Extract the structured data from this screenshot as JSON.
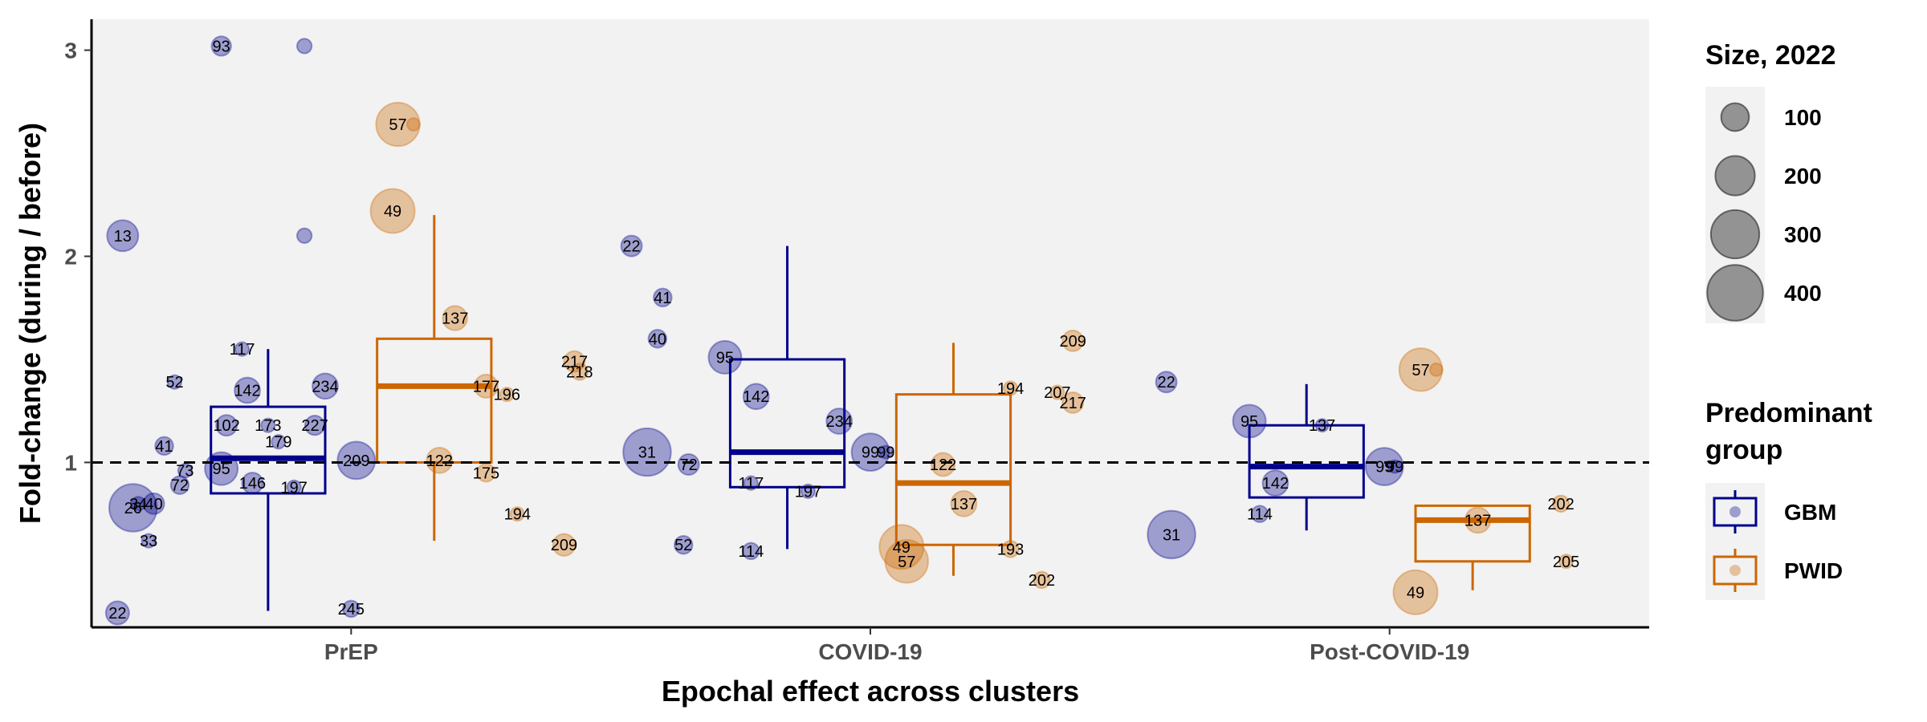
{
  "chart_data": {
    "type": "scatter",
    "title": "",
    "xlabel": "Epochal effect across clusters",
    "ylabel": "Fold-change (during / before)",
    "categories": [
      "PrEP",
      "COVID-19",
      "Post-COVID-19"
    ],
    "yticks": [
      1,
      2,
      3
    ],
    "ylim": [
      0.2,
      3.15
    ],
    "reference_line": 1,
    "grid": false,
    "colors": {
      "GBM": "#00008B",
      "PWID": "#CC6600",
      "panel": "#F2F2F2"
    },
    "size_legend": {
      "title": "Size, 2022",
      "values": [
        100,
        200,
        300,
        400
      ],
      "labels": [
        "100",
        "200",
        "300",
        "400"
      ]
    },
    "color_legend": {
      "title_lines": [
        "Predominant",
        "group"
      ],
      "entries": [
        "GBM",
        "PWID"
      ]
    },
    "boxes": [
      {
        "category": "PrEP",
        "group": "GBM",
        "min": 0.28,
        "q1": 0.85,
        "median": 1.02,
        "q3": 1.27,
        "max": 1.55
      },
      {
        "category": "PrEP",
        "group": "PWID",
        "min": 0.62,
        "q1": 1.0,
        "median": 1.37,
        "q3": 1.6,
        "max": 2.2
      },
      {
        "category": "COVID-19",
        "group": "GBM",
        "min": 0.58,
        "q1": 0.88,
        "median": 1.05,
        "q3": 1.5,
        "max": 2.05
      },
      {
        "category": "COVID-19",
        "group": "PWID",
        "min": 0.45,
        "q1": 0.6,
        "median": 0.9,
        "q3": 1.33,
        "max": 1.58
      },
      {
        "category": "Post-COVID-19",
        "group": "GBM",
        "min": 0.67,
        "q1": 0.83,
        "median": 0.98,
        "q3": 1.18,
        "max": 1.38
      },
      {
        "category": "Post-COVID-19",
        "group": "PWID",
        "min": 0.38,
        "q1": 0.52,
        "median": 0.72,
        "q3": 0.79,
        "max": 0.79
      }
    ],
    "points": [
      {
        "category": "PrEP",
        "group": "GBM",
        "label": "93",
        "y": 3.02,
        "size": 70,
        "dx": -0.25
      },
      {
        "category": "PrEP",
        "group": "GBM",
        "label": "",
        "y": 3.02,
        "size": 40,
        "dx": -0.09
      },
      {
        "category": "PrEP",
        "group": "GBM",
        "label": "13",
        "y": 2.1,
        "size": 180,
        "dx": -0.44
      },
      {
        "category": "PrEP",
        "group": "GBM",
        "label": "",
        "y": 2.1,
        "size": 40,
        "dx": -0.09
      },
      {
        "category": "PrEP",
        "group": "GBM",
        "label": "117",
        "y": 1.55,
        "size": 35,
        "dx": -0.21
      },
      {
        "category": "PrEP",
        "group": "GBM",
        "label": "52",
        "y": 1.39,
        "size": 35,
        "dx": -0.34
      },
      {
        "category": "PrEP",
        "group": "GBM",
        "label": "142",
        "y": 1.35,
        "size": 120,
        "dx": -0.2
      },
      {
        "category": "PrEP",
        "group": "GBM",
        "label": "234",
        "y": 1.37,
        "size": 120,
        "dx": -0.05
      },
      {
        "category": "PrEP",
        "group": "GBM",
        "label": "102",
        "y": 1.18,
        "size": 80,
        "dx": -0.24
      },
      {
        "category": "PrEP",
        "group": "GBM",
        "label": "173",
        "y": 1.18,
        "size": 35,
        "dx": -0.16
      },
      {
        "category": "PrEP",
        "group": "GBM",
        "label": "227",
        "y": 1.18,
        "size": 70,
        "dx": -0.07
      },
      {
        "category": "PrEP",
        "group": "GBM",
        "label": "179",
        "y": 1.1,
        "size": 35,
        "dx": -0.14
      },
      {
        "category": "PrEP",
        "group": "GBM",
        "label": "41",
        "y": 1.08,
        "size": 60,
        "dx": -0.36
      },
      {
        "category": "PrEP",
        "group": "GBM",
        "label": "209",
        "y": 1.01,
        "size": 260,
        "dx": 0.01
      },
      {
        "category": "PrEP",
        "group": "GBM",
        "label": "95",
        "y": 0.97,
        "size": 200,
        "dx": -0.25
      },
      {
        "category": "PrEP",
        "group": "GBM",
        "label": "73",
        "y": 0.96,
        "size": 35,
        "dx": -0.32
      },
      {
        "category": "PrEP",
        "group": "GBM",
        "label": "146",
        "y": 0.9,
        "size": 80,
        "dx": -0.19
      },
      {
        "category": "PrEP",
        "group": "GBM",
        "label": "197",
        "y": 0.88,
        "size": 35,
        "dx": -0.11
      },
      {
        "category": "PrEP",
        "group": "GBM",
        "label": "72",
        "y": 0.89,
        "size": 60,
        "dx": -0.33
      },
      {
        "category": "PrEP",
        "group": "GBM",
        "label": "40",
        "y": 0.8,
        "size": 80,
        "dx": -0.38
      },
      {
        "category": "PrEP",
        "group": "GBM",
        "label": "34",
        "y": 0.8,
        "size": 35,
        "dx": -0.41
      },
      {
        "category": "PrEP",
        "group": "GBM",
        "label": "26",
        "y": 0.78,
        "size": 420,
        "dx": -0.42
      },
      {
        "category": "PrEP",
        "group": "GBM",
        "label": "33",
        "y": 0.62,
        "size": 35,
        "dx": -0.39
      },
      {
        "category": "PrEP",
        "group": "GBM",
        "label": "22",
        "y": 0.27,
        "size": 100,
        "dx": -0.45
      },
      {
        "category": "PrEP",
        "group": "GBM",
        "label": "245",
        "y": 0.29,
        "size": 50,
        "dx": 0.0
      },
      {
        "category": "PrEP",
        "group": "PWID",
        "label": "57",
        "y": 2.64,
        "size": 350,
        "dx": 0.09
      },
      {
        "category": "PrEP",
        "group": "PWID",
        "label": "",
        "y": 2.64,
        "size": 30,
        "dx": 0.12
      },
      {
        "category": "PrEP",
        "group": "PWID",
        "label": "49",
        "y": 2.22,
        "size": 360,
        "dx": 0.08
      },
      {
        "category": "PrEP",
        "group": "PWID",
        "label": "137",
        "y": 1.7,
        "size": 110,
        "dx": 0.2
      },
      {
        "category": "PrEP",
        "group": "PWID",
        "label": "217",
        "y": 1.49,
        "size": 80,
        "dx": 0.43
      },
      {
        "category": "PrEP",
        "group": "PWID",
        "label": "218",
        "y": 1.44,
        "size": 50,
        "dx": 0.44
      },
      {
        "category": "PrEP",
        "group": "PWID",
        "label": "177",
        "y": 1.37,
        "size": 100,
        "dx": 0.26
      },
      {
        "category": "PrEP",
        "group": "PWID",
        "label": "196",
        "y": 1.33,
        "size": 35,
        "dx": 0.3
      },
      {
        "category": "PrEP",
        "group": "PWID",
        "label": "122",
        "y": 1.01,
        "size": 120,
        "dx": 0.17
      },
      {
        "category": "PrEP",
        "group": "PWID",
        "label": "175",
        "y": 0.95,
        "size": 60,
        "dx": 0.26
      },
      {
        "category": "PrEP",
        "group": "PWID",
        "label": "194",
        "y": 0.75,
        "size": 35,
        "dx": 0.32
      },
      {
        "category": "PrEP",
        "group": "PWID",
        "label": "209",
        "y": 0.6,
        "size": 90,
        "dx": 0.41
      },
      {
        "category": "COVID-19",
        "group": "GBM",
        "label": "22",
        "y": 2.05,
        "size": 80,
        "dx": -0.46
      },
      {
        "category": "COVID-19",
        "group": "GBM",
        "label": "41",
        "y": 1.8,
        "size": 60,
        "dx": -0.4
      },
      {
        "category": "COVID-19",
        "group": "GBM",
        "label": "40",
        "y": 1.6,
        "size": 60,
        "dx": -0.41
      },
      {
        "category": "COVID-19",
        "group": "GBM",
        "label": "95",
        "y": 1.51,
        "size": 200,
        "dx": -0.28
      },
      {
        "category": "COVID-19",
        "group": "GBM",
        "label": "142",
        "y": 1.32,
        "size": 120,
        "dx": -0.22
      },
      {
        "category": "COVID-19",
        "group": "GBM",
        "label": "234",
        "y": 1.2,
        "size": 120,
        "dx": -0.06
      },
      {
        "category": "COVID-19",
        "group": "GBM",
        "label": "31",
        "y": 1.05,
        "size": 420,
        "dx": -0.43
      },
      {
        "category": "COVID-19",
        "group": "GBM",
        "label": "99",
        "y": 1.05,
        "size": 260,
        "dx": 0.0
      },
      {
        "category": "COVID-19",
        "group": "GBM",
        "label": "99",
        "y": 1.05,
        "size": 30,
        "dx": 0.03
      },
      {
        "category": "COVID-19",
        "group": "GBM",
        "label": "72",
        "y": 0.99,
        "size": 80,
        "dx": -0.35
      },
      {
        "category": "COVID-19",
        "group": "GBM",
        "label": "117",
        "y": 0.9,
        "size": 35,
        "dx": -0.23
      },
      {
        "category": "COVID-19",
        "group": "GBM",
        "label": "197",
        "y": 0.86,
        "size": 35,
        "dx": -0.12
      },
      {
        "category": "COVID-19",
        "group": "GBM",
        "label": "52",
        "y": 0.6,
        "size": 60,
        "dx": -0.36
      },
      {
        "category": "COVID-19",
        "group": "GBM",
        "label": "114",
        "y": 0.57,
        "size": 50,
        "dx": -0.23
      },
      {
        "category": "COVID-19",
        "group": "PWID",
        "label": "209",
        "y": 1.59,
        "size": 80,
        "dx": 0.39
      },
      {
        "category": "COVID-19",
        "group": "PWID",
        "label": "194",
        "y": 1.36,
        "size": 35,
        "dx": 0.27
      },
      {
        "category": "COVID-19",
        "group": "PWID",
        "label": "207",
        "y": 1.34,
        "size": 35,
        "dx": 0.36
      },
      {
        "category": "COVID-19",
        "group": "PWID",
        "label": "217",
        "y": 1.29,
        "size": 80,
        "dx": 0.39
      },
      {
        "category": "COVID-19",
        "group": "PWID",
        "label": "122",
        "y": 0.99,
        "size": 100,
        "dx": 0.14
      },
      {
        "category": "COVID-19",
        "group": "PWID",
        "label": "137",
        "y": 0.8,
        "size": 120,
        "dx": 0.18
      },
      {
        "category": "COVID-19",
        "group": "PWID",
        "label": "49",
        "y": 0.59,
        "size": 360,
        "dx": 0.06
      },
      {
        "category": "COVID-19",
        "group": "PWID",
        "label": "57",
        "y": 0.52,
        "size": 340,
        "dx": 0.07
      },
      {
        "category": "COVID-19",
        "group": "PWID",
        "label": "193",
        "y": 0.58,
        "size": 50,
        "dx": 0.27
      },
      {
        "category": "COVID-19",
        "group": "PWID",
        "label": "202",
        "y": 0.43,
        "size": 50,
        "dx": 0.33
      },
      {
        "category": "Post-COVID-19",
        "group": "GBM",
        "label": "22",
        "y": 1.39,
        "size": 80,
        "dx": -0.43
      },
      {
        "category": "Post-COVID-19",
        "group": "GBM",
        "label": "95",
        "y": 1.2,
        "size": 200,
        "dx": -0.27
      },
      {
        "category": "Post-COVID-19",
        "group": "GBM",
        "label": "137",
        "y": 1.18,
        "size": 30,
        "dx": -0.13
      },
      {
        "category": "Post-COVID-19",
        "group": "GBM",
        "label": "99",
        "y": 0.98,
        "size": 260,
        "dx": -0.01
      },
      {
        "category": "Post-COVID-19",
        "group": "GBM",
        "label": "99",
        "y": 0.98,
        "size": 30,
        "dx": 0.01
      },
      {
        "category": "Post-COVID-19",
        "group": "GBM",
        "label": "142",
        "y": 0.9,
        "size": 120,
        "dx": -0.22
      },
      {
        "category": "Post-COVID-19",
        "group": "GBM",
        "label": "114",
        "y": 0.75,
        "size": 50,
        "dx": -0.25
      },
      {
        "category": "Post-COVID-19",
        "group": "GBM",
        "label": "31",
        "y": 0.65,
        "size": 420,
        "dx": -0.42
      },
      {
        "category": "Post-COVID-19",
        "group": "PWID",
        "label": "57",
        "y": 1.45,
        "size": 340,
        "dx": 0.06
      },
      {
        "category": "Post-COVID-19",
        "group": "PWID",
        "label": "",
        "y": 1.45,
        "size": 30,
        "dx": 0.09
      },
      {
        "category": "Post-COVID-19",
        "group": "PWID",
        "label": "137",
        "y": 0.72,
        "size": 120,
        "dx": 0.17
      },
      {
        "category": "Post-COVID-19",
        "group": "PWID",
        "label": "202",
        "y": 0.8,
        "size": 50,
        "dx": 0.33
      },
      {
        "category": "Post-COVID-19",
        "group": "PWID",
        "label": "205",
        "y": 0.52,
        "size": 35,
        "dx": 0.34
      },
      {
        "category": "Post-COVID-19",
        "group": "PWID",
        "label": "49",
        "y": 0.37,
        "size": 360,
        "dx": 0.05
      }
    ]
  }
}
